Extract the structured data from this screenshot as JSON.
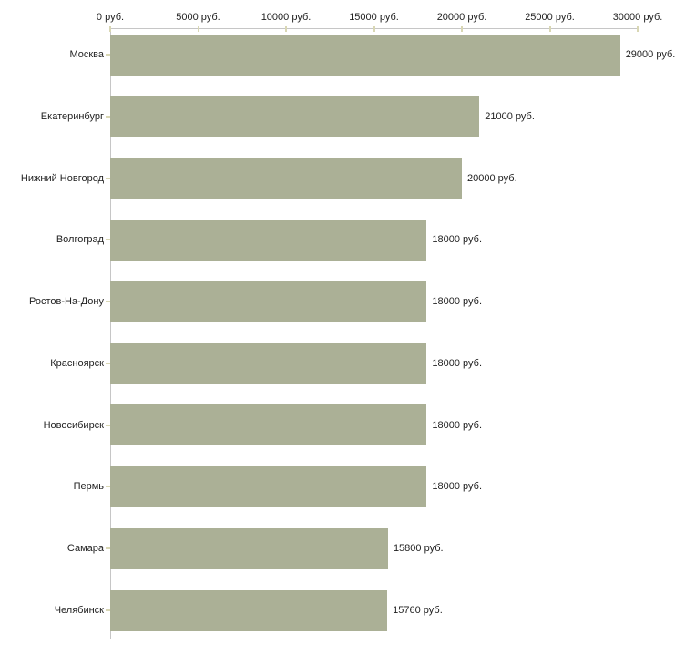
{
  "chart_data": {
    "type": "bar",
    "orientation": "horizontal",
    "title": "",
    "categories": [
      "Москва",
      "Екатеринбург",
      "Нижний Новгород",
      "Волгоград",
      "Ростов-На-Дону",
      "Красноярск",
      "Новосибирск",
      "Пермь",
      "Самара",
      "Челябинск"
    ],
    "values": [
      29000,
      21000,
      20000,
      18000,
      18000,
      18000,
      18000,
      18000,
      15800,
      15760
    ],
    "value_labels": [
      "29000 руб.",
      "21000 руб.",
      "20000 руб.",
      "18000 руб.",
      "18000 руб.",
      "18000 руб.",
      "18000 руб.",
      "18000 руб.",
      "15800 руб.",
      "15760 руб."
    ],
    "x_axis": {
      "position": "top",
      "range": [
        0,
        30000
      ],
      "ticks": [
        0,
        5000,
        10000,
        15000,
        20000,
        25000,
        30000
      ],
      "tick_labels": [
        "0 руб.",
        "5000 руб.",
        "10000 руб.",
        "15000 руб.",
        "20000 руб.",
        "25000 руб.",
        "30000 руб."
      ]
    },
    "grid": "off",
    "legend": "none",
    "colors": {
      "bar": "#abb096",
      "axis_line": "#c6c6c6",
      "tick_mark": "#d9d7b4",
      "text": "#1f1f1f",
      "background": "#ffffff"
    }
  }
}
